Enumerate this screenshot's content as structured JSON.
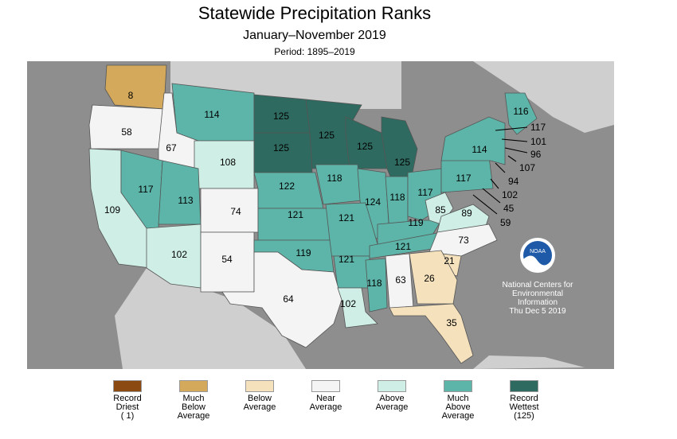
{
  "header": {
    "title": "Statewide Precipitation Ranks",
    "subtitle": "January–November 2019",
    "period": "Period: 1895–2019"
  },
  "colors": {
    "record_driest": "#8b4a12",
    "much_below": "#d4a95b",
    "below": "#f5e2bd",
    "near": "#f4f4f4",
    "above": "#cfeee5",
    "much_above": "#5cb5a8",
    "record_wettest": "#2e6a5f",
    "ocean": "#8e8e8e",
    "land": "#cfcfcf"
  },
  "states": [
    {
      "abbr": "WA",
      "rank": "8",
      "cls": "much_below"
    },
    {
      "abbr": "OR",
      "rank": "58",
      "cls": "near"
    },
    {
      "abbr": "ID",
      "rank": "67",
      "cls": "near"
    },
    {
      "abbr": "MT",
      "rank": "114",
      "cls": "much_above"
    },
    {
      "abbr": "WY",
      "rank": "108",
      "cls": "above"
    },
    {
      "abbr": "ND",
      "rank": "125",
      "cls": "record_wettest"
    },
    {
      "abbr": "SD",
      "rank": "125",
      "cls": "record_wettest"
    },
    {
      "abbr": "MN",
      "rank": "125",
      "cls": "record_wettest"
    },
    {
      "abbr": "WI",
      "rank": "125",
      "cls": "record_wettest"
    },
    {
      "abbr": "MI",
      "rank": "125",
      "cls": "record_wettest"
    },
    {
      "abbr": "CA",
      "rank": "109",
      "cls": "above"
    },
    {
      "abbr": "NV",
      "rank": "117",
      "cls": "much_above"
    },
    {
      "abbr": "UT",
      "rank": "113",
      "cls": "much_above"
    },
    {
      "abbr": "CO",
      "rank": "74",
      "cls": "near"
    },
    {
      "abbr": "NE",
      "rank": "122",
      "cls": "much_above"
    },
    {
      "abbr": "IA",
      "rank": "118",
      "cls": "much_above"
    },
    {
      "abbr": "IL",
      "rank": "124",
      "cls": "much_above"
    },
    {
      "abbr": "IN",
      "rank": "118",
      "cls": "much_above"
    },
    {
      "abbr": "OH",
      "rank": "117",
      "cls": "much_above"
    },
    {
      "abbr": "PA",
      "rank": "117",
      "cls": "much_above"
    },
    {
      "abbr": "NY",
      "rank": "114",
      "cls": "much_above"
    },
    {
      "abbr": "ME",
      "rank": "116",
      "cls": "much_above"
    },
    {
      "abbr": "AZ",
      "rank": "102",
      "cls": "above"
    },
    {
      "abbr": "NM",
      "rank": "54",
      "cls": "near"
    },
    {
      "abbr": "KS",
      "rank": "121",
      "cls": "much_above"
    },
    {
      "abbr": "MO",
      "rank": "121",
      "cls": "much_above"
    },
    {
      "abbr": "KY",
      "rank": "119",
      "cls": "much_above"
    },
    {
      "abbr": "WV",
      "rank": "85",
      "cls": "above"
    },
    {
      "abbr": "VA",
      "rank": "89",
      "cls": "above"
    },
    {
      "abbr": "OK",
      "rank": "119",
      "cls": "much_above"
    },
    {
      "abbr": "AR",
      "rank": "121",
      "cls": "much_above"
    },
    {
      "abbr": "TN",
      "rank": "121",
      "cls": "much_above"
    },
    {
      "abbr": "NC",
      "rank": "73",
      "cls": "near"
    },
    {
      "abbr": "SC",
      "rank": "21",
      "cls": "below"
    },
    {
      "abbr": "TX",
      "rank": "64",
      "cls": "near"
    },
    {
      "abbr": "LA",
      "rank": "102",
      "cls": "above"
    },
    {
      "abbr": "MS",
      "rank": "118",
      "cls": "much_above"
    },
    {
      "abbr": "AL",
      "rank": "63",
      "cls": "near"
    },
    {
      "abbr": "GA",
      "rank": "26",
      "cls": "below"
    },
    {
      "abbr": "FL",
      "rank": "35",
      "cls": "below"
    }
  ],
  "callouts": [
    {
      "abbr": "VT",
      "rank": "117"
    },
    {
      "abbr": "NH",
      "rank": "101"
    },
    {
      "abbr": "MA",
      "rank": "96"
    },
    {
      "abbr": "RI",
      "rank": "107"
    },
    {
      "abbr": "CT",
      "rank": "94"
    },
    {
      "abbr": "NJ",
      "rank": "102"
    },
    {
      "abbr": "DE",
      "rank": "45"
    },
    {
      "abbr": "MD",
      "rank": "59"
    }
  ],
  "noaa": {
    "logo_text": "NOAA",
    "line1": "National Centers for",
    "line2": "Environmental",
    "line3": "Information",
    "date": "Thu Dec  5 2019"
  },
  "legend": [
    {
      "key": "record_driest",
      "label1": "Record",
      "label2": "Driest",
      "label3": "( 1)"
    },
    {
      "key": "much_below",
      "label1": "Much",
      "label2": "Below",
      "label3": "Average"
    },
    {
      "key": "below",
      "label1": "Below",
      "label2": "Average",
      "label3": ""
    },
    {
      "key": "near",
      "label1": "Near",
      "label2": "Average",
      "label3": ""
    },
    {
      "key": "above",
      "label1": "Above",
      "label2": "Average",
      "label3": ""
    },
    {
      "key": "much_above",
      "label1": "Much",
      "label2": "Above",
      "label3": "Average"
    },
    {
      "key": "record_wettest",
      "label1": "Record",
      "label2": "Wettest",
      "label3": "(125)"
    }
  ]
}
